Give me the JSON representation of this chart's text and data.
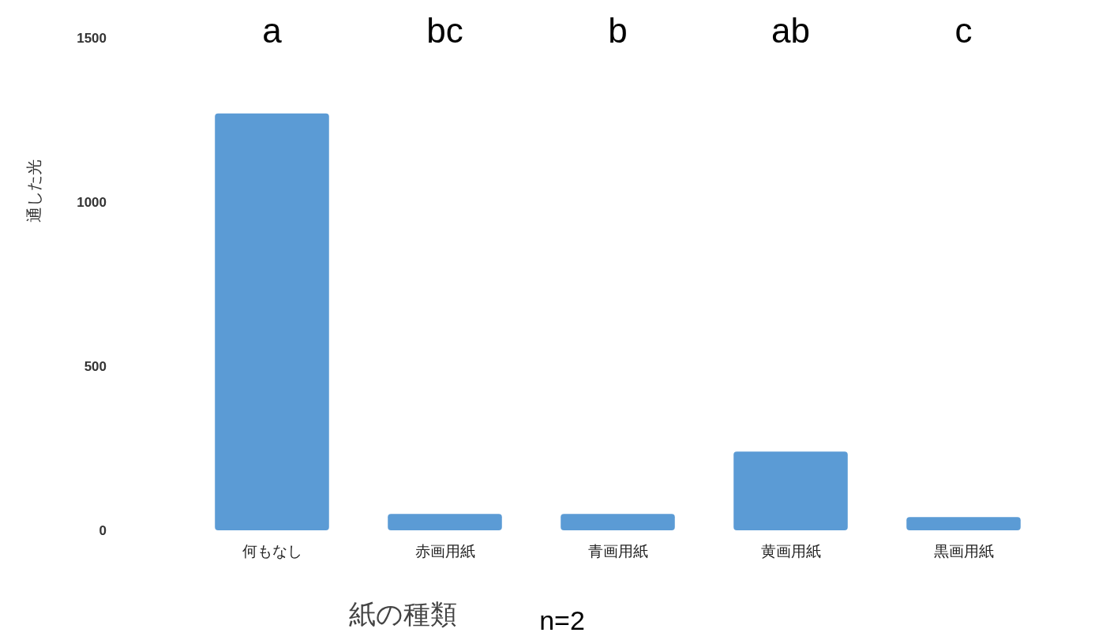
{
  "chart_data": {
    "type": "bar",
    "categories": [
      "何もなし",
      "赤画用紙",
      "青画用紙",
      "黄画用紙",
      "黒画用紙"
    ],
    "values": [
      1270,
      50,
      50,
      240,
      40
    ],
    "color": "#5b9bd5",
    "ylabel": "通した光",
    "xlabel": "紙の種類",
    "ylim": [
      0,
      1500
    ],
    "yticks": [
      0,
      500,
      1000,
      1500
    ],
    "grid": false,
    "annotations": [
      "a",
      "bc",
      "b",
      "ab",
      "c",
      "n=2"
    ]
  }
}
